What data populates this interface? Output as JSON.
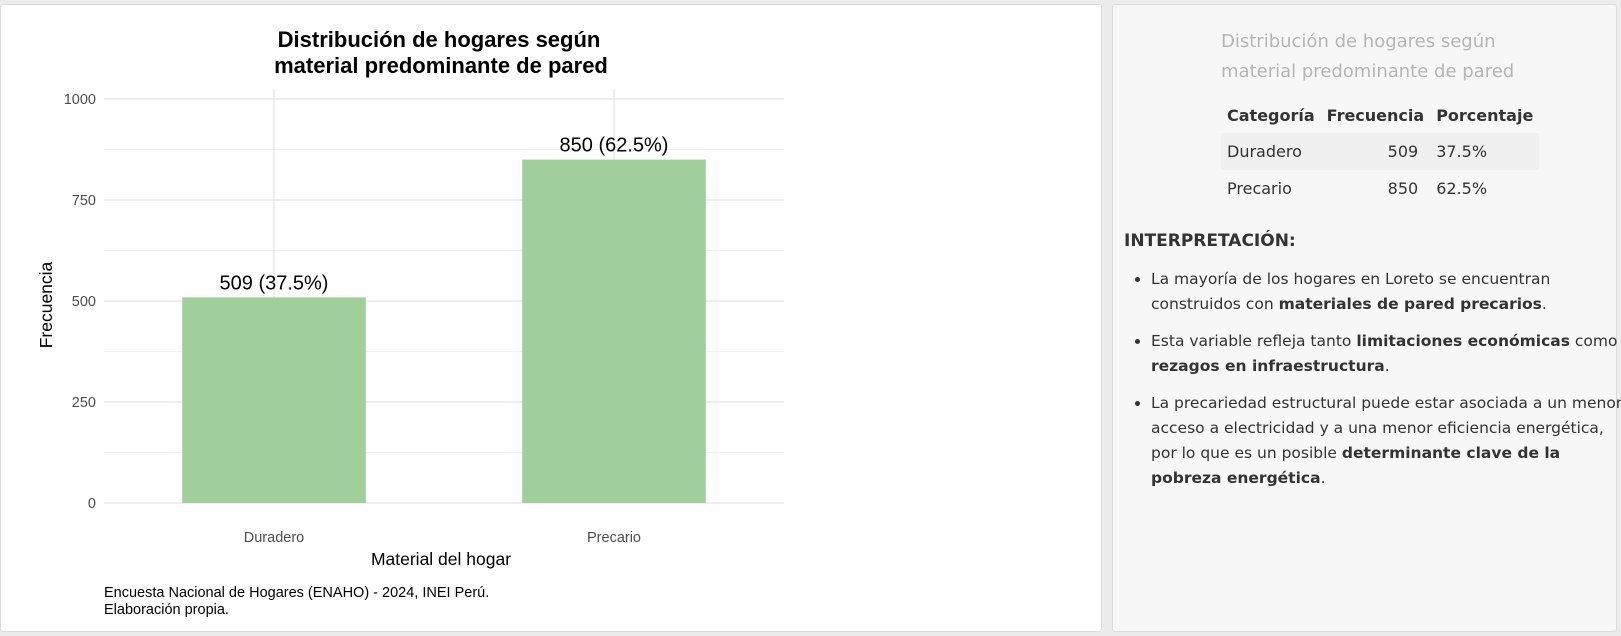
{
  "chart_data": {
    "type": "bar",
    "title": "Distribución de hogares según material predominante de pared",
    "title_lines": [
      "Distribución de hogares según",
      "material predominante de pared"
    ],
    "categories": [
      "Duradero",
      "Precario"
    ],
    "values": [
      509,
      850
    ],
    "data_labels": [
      "509 (37.5%)",
      "850 (62.5%)"
    ],
    "xlabel": "Material del hogar",
    "ylabel": "Frecuencia",
    "ylim": [
      0,
      1000
    ],
    "yticks": [
      0,
      250,
      500,
      750,
      1000
    ],
    "grid": true,
    "bar_color": "#a1cf9c",
    "caption_lines": [
      "Encuesta Nacional de Hogares (ENAHO) - 2024, INEI Perú.",
      "Elaboración propia."
    ]
  },
  "side_panel": {
    "title": "Distribución de hogares según material predominante de pared",
    "table": {
      "headers": [
        "Categoría",
        "Frecuencia",
        "Porcentaje"
      ],
      "rows": [
        [
          "Duradero",
          "509",
          "37.5%"
        ],
        [
          "Precario",
          "850",
          "62.5%"
        ]
      ]
    },
    "interpretation_heading": "INTERPRETACIÓN:",
    "bullets": [
      [
        {
          "text": "La mayoría de los hogares en Loreto se encuentran construidos con ",
          "bold": false
        },
        {
          "text": "materiales de pared precarios",
          "bold": true
        },
        {
          "text": ".",
          "bold": false
        }
      ],
      [
        {
          "text": "Esta variable refleja tanto ",
          "bold": false
        },
        {
          "text": "limitaciones económicas",
          "bold": true
        },
        {
          "text": " como ",
          "bold": false
        },
        {
          "text": "rezagos en infraestructura",
          "bold": true
        },
        {
          "text": ".",
          "bold": false
        }
      ],
      [
        {
          "text": "La precariedad estructural puede estar asociada a un menor acceso a electricidad y a una menor eficiencia energética, por lo que es un posible ",
          "bold": false
        },
        {
          "text": "determinante clave de la pobreza energética",
          "bold": true
        },
        {
          "text": ".",
          "bold": false
        }
      ]
    ]
  }
}
